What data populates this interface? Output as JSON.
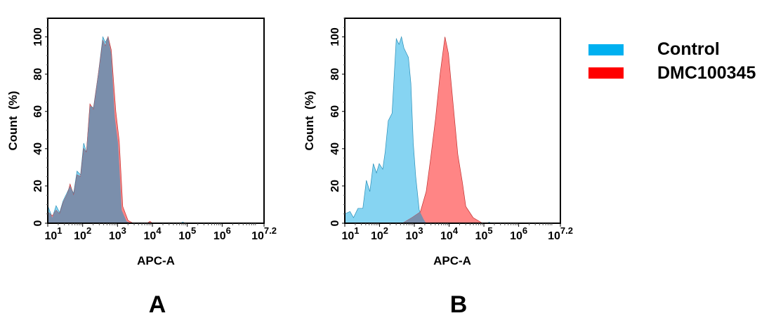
{
  "legend": [
    {
      "label": "Control",
      "color": "#00b0f0"
    },
    {
      "label": "DMC100345",
      "color": "#ff0000"
    }
  ],
  "fill_colors": {
    "control": "#86d4f2",
    "sample": "#ff8585",
    "overlap": "#7b8fac"
  },
  "chart_data": [
    {
      "type": "area",
      "panel_label": "A",
      "xlabel": "APC-A",
      "ylabel": "Count  (%)",
      "x_scale": "log",
      "xlim_log10": [
        1,
        7.2
      ],
      "ylim": [
        0,
        110
      ],
      "xticks": [
        {
          "base": "10",
          "exp": "1",
          "log": 1
        },
        {
          "base": "10",
          "exp": "2",
          "log": 2
        },
        {
          "base": "10",
          "exp": "3",
          "log": 3
        },
        {
          "base": "10",
          "exp": "4",
          "log": 4
        },
        {
          "base": "10",
          "exp": "5",
          "log": 5
        },
        {
          "base": "10",
          "exp": "6",
          "log": 6
        },
        {
          "base": "10",
          "exp": "7.2",
          "log": 7.2
        }
      ],
      "yticks": [
        0,
        20,
        40,
        60,
        80,
        100
      ],
      "series": [
        {
          "name": "Control",
          "log10_x": [
            1,
            1.13,
            1.24,
            1.34,
            1.44,
            1.57,
            1.64,
            1.74,
            1.84,
            1.94,
            2.03,
            2.11,
            2.21,
            2.31,
            2.45,
            2.58,
            2.65,
            2.73,
            2.82,
            2.92,
            3.02,
            3.12,
            3.26,
            3.39,
            4.8,
            4.87,
            4.94,
            7.2
          ],
          "y": [
            9.4,
            3,
            9.4,
            5.7,
            12,
            17,
            20,
            16,
            28,
            26,
            43,
            38,
            63,
            62,
            80,
            100,
            97,
            100,
            91,
            57,
            42,
            7,
            1,
            0,
            0,
            0.6,
            0,
            0
          ]
        },
        {
          "name": "DMC100345",
          "log10_x": [
            1,
            1.13,
            1.24,
            1.34,
            1.44,
            1.57,
            1.64,
            1.74,
            1.84,
            1.94,
            2.03,
            2.11,
            2.21,
            2.31,
            2.45,
            2.58,
            2.65,
            2.73,
            2.82,
            2.95,
            3.05,
            3.15,
            3.3,
            3.45,
            3.85,
            3.93,
            4.0,
            7.2
          ],
          "y": [
            6,
            4,
            7,
            5,
            11,
            16,
            21,
            15,
            26,
            25,
            40,
            38,
            64,
            61,
            80,
            98,
            95,
            100,
            93,
            60,
            44,
            9,
            1.5,
            0,
            0,
            1,
            0,
            0
          ]
        }
      ]
    },
    {
      "type": "area",
      "panel_label": "B",
      "xlabel": "APC-A",
      "ylabel": "Count  (%)",
      "x_scale": "log",
      "xlim_log10": [
        1,
        7.2
      ],
      "ylim": [
        0,
        110
      ],
      "xticks": [
        {
          "base": "10",
          "exp": "1",
          "log": 1
        },
        {
          "base": "10",
          "exp": "2",
          "log": 2
        },
        {
          "base": "10",
          "exp": "3",
          "log": 3
        },
        {
          "base": "10",
          "exp": "4",
          "log": 4
        },
        {
          "base": "10",
          "exp": "5",
          "log": 5
        },
        {
          "base": "10",
          "exp": "6",
          "log": 6
        },
        {
          "base": "10",
          "exp": "7.2",
          "log": 7.2
        }
      ],
      "yticks": [
        0,
        20,
        40,
        60,
        80,
        100
      ],
      "series": [
        {
          "name": "Control",
          "log10_x": [
            1,
            1.15,
            1.25,
            1.38,
            1.52,
            1.62,
            1.72,
            1.82,
            1.91,
            1.99,
            2.09,
            2.16,
            2.25,
            2.36,
            2.48,
            2.56,
            2.63,
            2.7,
            2.83,
            2.9,
            2.97,
            3.04,
            3.14,
            3.27,
            3.34,
            5.1,
            5.15,
            5.2,
            7.2
          ],
          "y": [
            5,
            6.3,
            3,
            8,
            8,
            23,
            17,
            32,
            27,
            32,
            29,
            38,
            55,
            59,
            99,
            96,
            100,
            94,
            89,
            75,
            43,
            25,
            7,
            2,
            0,
            0,
            0.6,
            0,
            0
          ]
        },
        {
          "name": "DMC100345",
          "log10_x": [
            1,
            2.66,
            2.93,
            3.17,
            3.34,
            3.47,
            3.61,
            3.74,
            3.88,
            3.98,
            4.11,
            4.25,
            4.38,
            4.48,
            4.69,
            4.96,
            7.2
          ],
          "y": [
            0,
            0,
            3,
            6,
            17,
            35,
            56,
            80,
            100,
            91,
            65,
            37,
            22,
            9,
            3,
            0,
            0
          ]
        }
      ]
    }
  ]
}
